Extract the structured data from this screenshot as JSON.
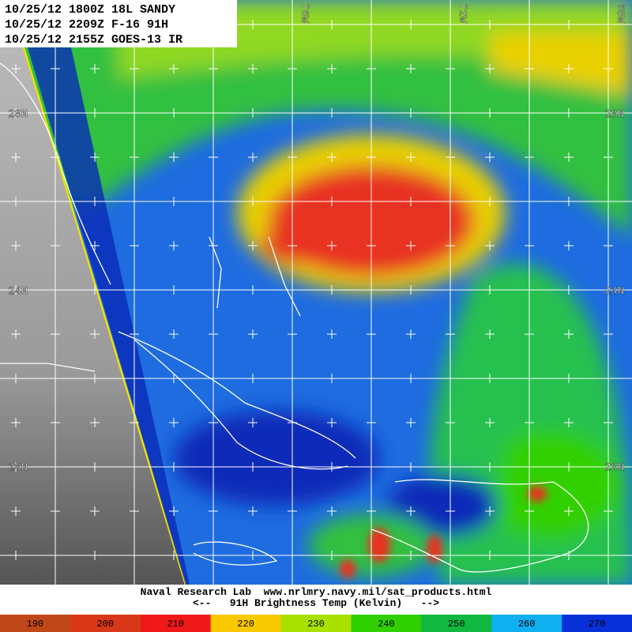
{
  "header": {
    "lines": [
      "10/25/12 1800Z 18L SANDY",
      "10/25/12 2209Z F-16 91H",
      "10/25/12 2155Z GOES-13 IR"
    ]
  },
  "grid_labels": {
    "longitude": [
      "76W",
      "72W",
      "68W"
    ],
    "latitude": [
      "28N",
      "24N",
      "20N"
    ]
  },
  "footer": {
    "credit": "Naval Research Lab  www.nrlmry.navy.mil/sat_products.html",
    "scale_title": "<--   91H Brightness Temp (Kelvin)   -->"
  },
  "colorbar": {
    "ticks": [
      190,
      200,
      210,
      220,
      230,
      240,
      250,
      260,
      270
    ],
    "colors": [
      "#c04818",
      "#d83818",
      "#f01818",
      "#f8c800",
      "#a8e000",
      "#30d000",
      "#10b840",
      "#10b0f0",
      "#0830d8"
    ]
  }
}
